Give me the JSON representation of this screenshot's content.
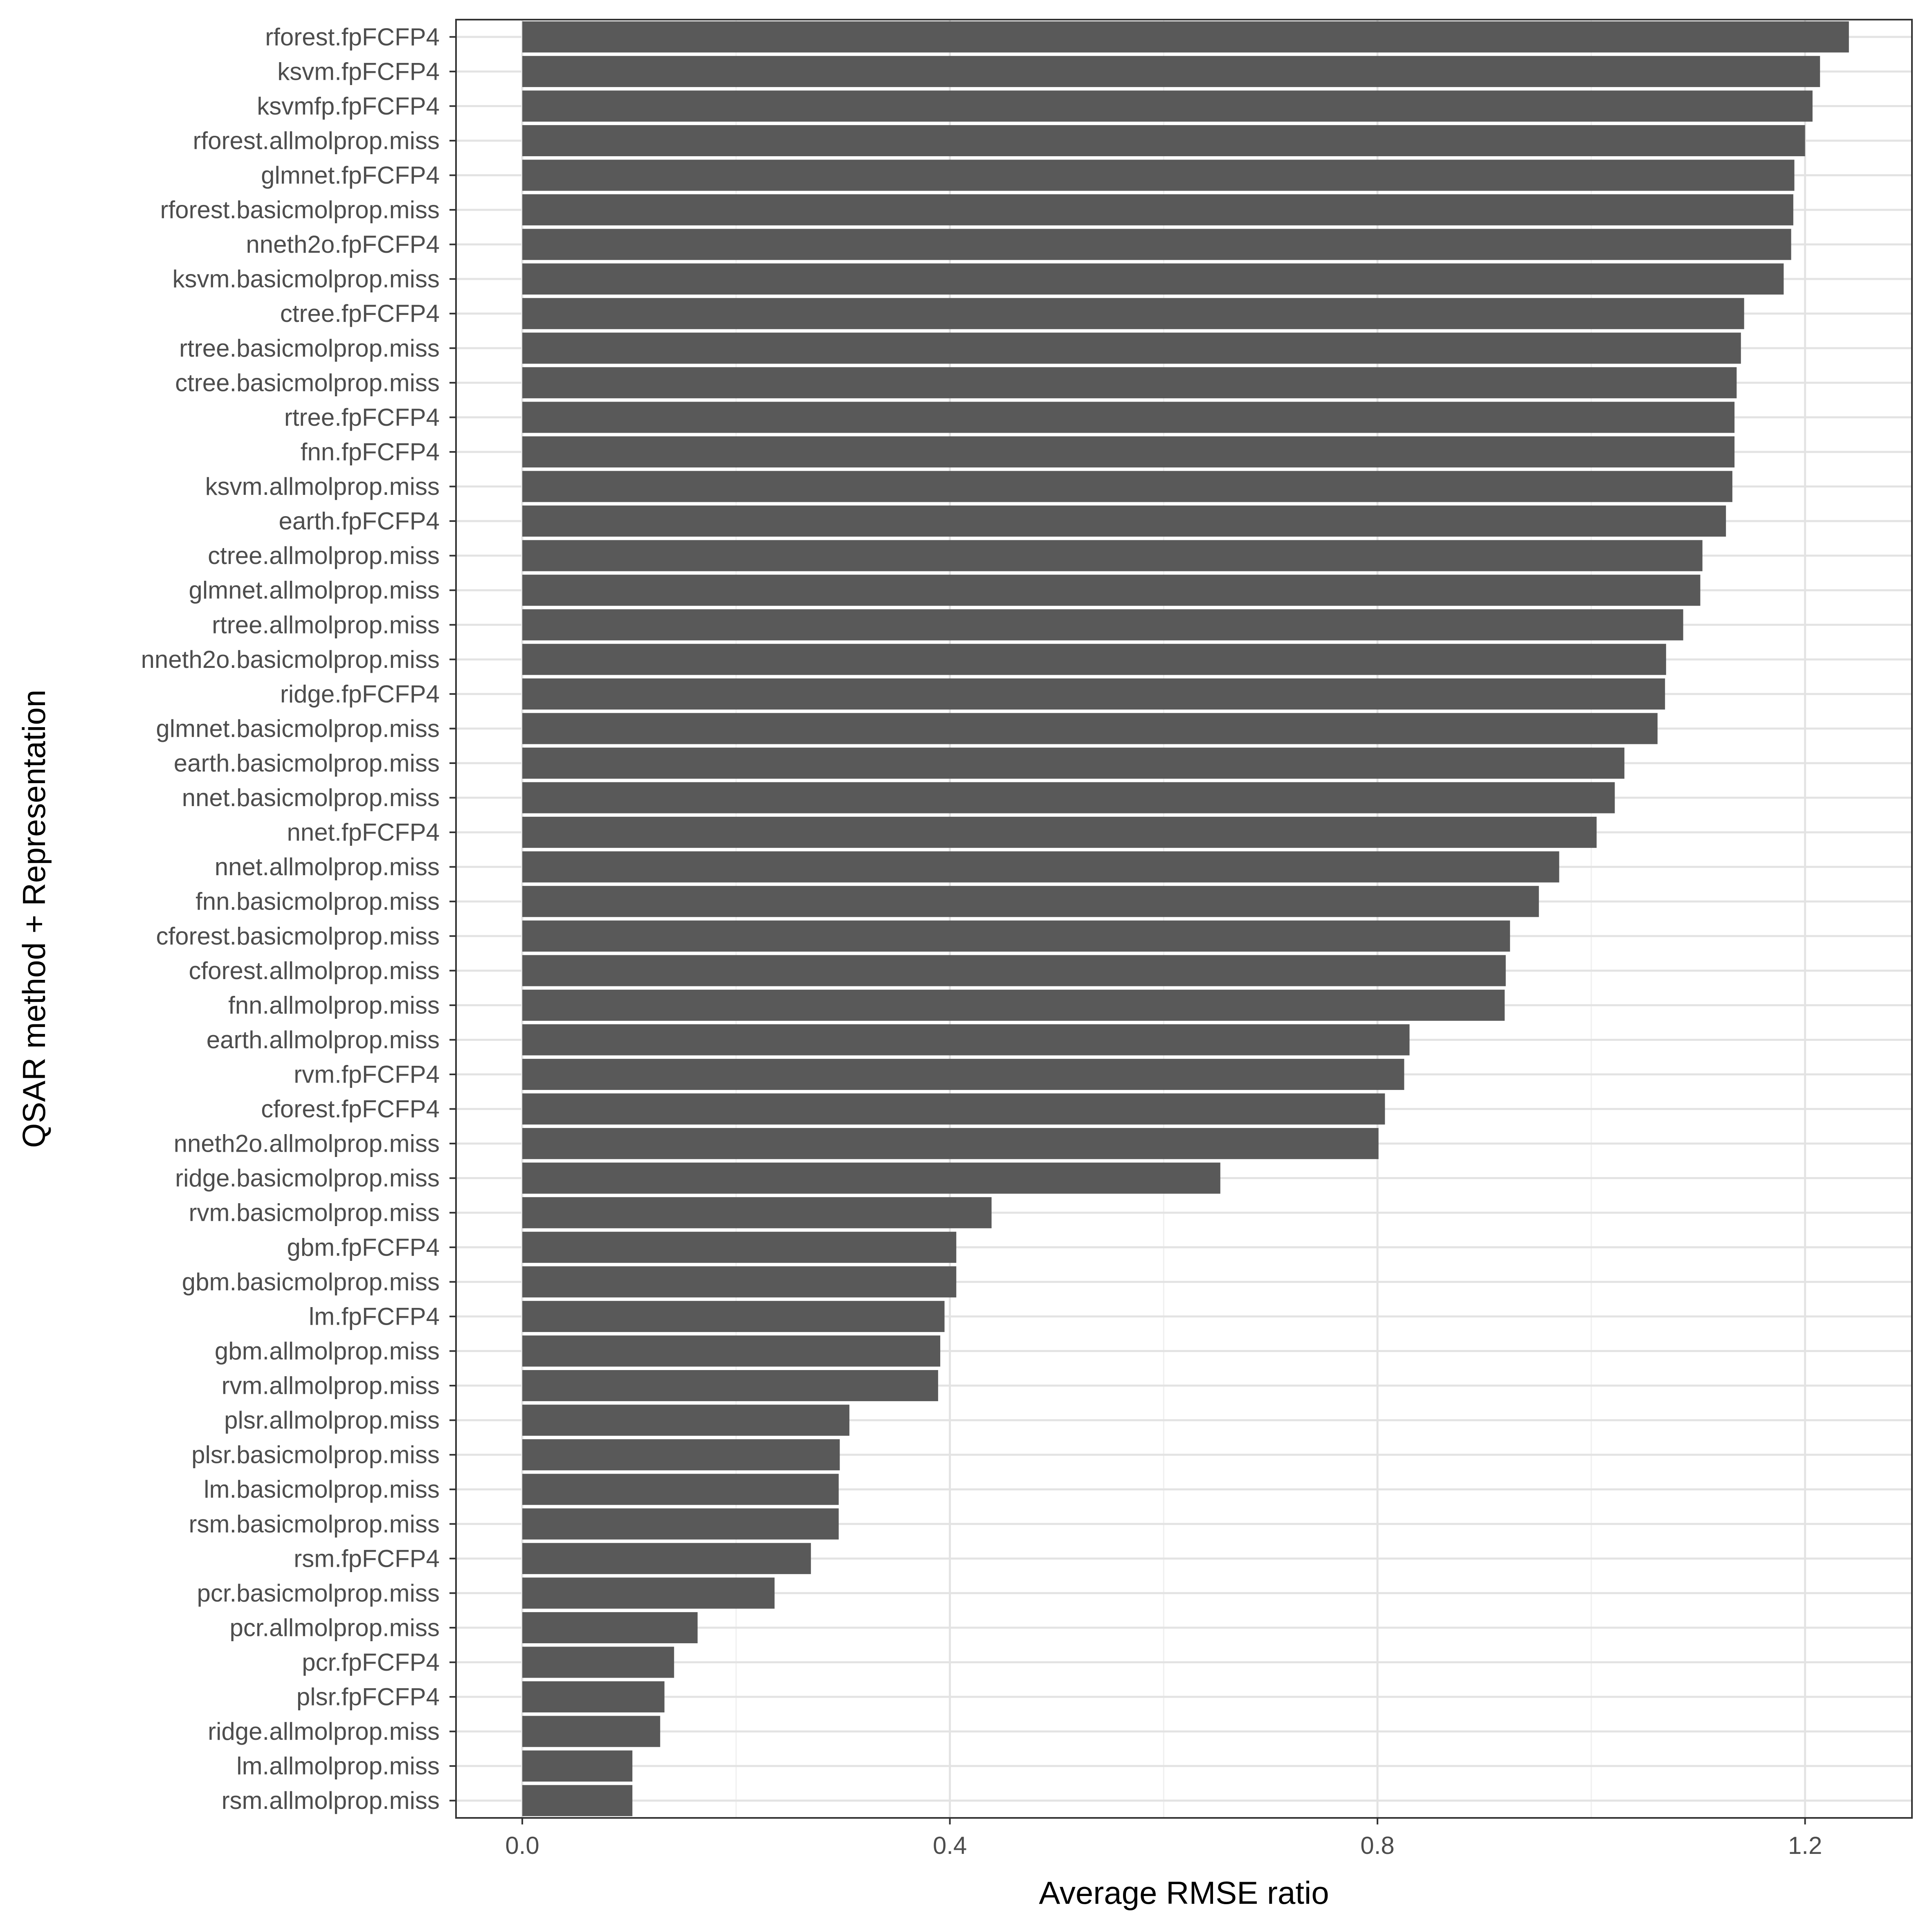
{
  "chart_data": {
    "type": "bar",
    "orientation": "horizontal",
    "xlabel": "Average RMSE ratio",
    "ylabel": "QSAR method + Representation",
    "xlim": [
      -0.062,
      1.3
    ],
    "xticks": [
      0.0,
      0.4,
      0.8,
      1.2
    ],
    "xtick_labels": [
      "0.0",
      "0.4",
      "0.8",
      "1.2"
    ],
    "grid": true,
    "legend": "none",
    "bar_color": "#595959",
    "categories": [
      "rforest.fpFCFP4",
      "ksvm.fpFCFP4",
      "ksvmfp.fpFCFP4",
      "rforest.allmolprop.miss",
      "glmnet.fpFCFP4",
      "rforest.basicmolprop.miss",
      "nneth2o.fpFCFP4",
      "ksvm.basicmolprop.miss",
      "ctree.fpFCFP4",
      "rtree.basicmolprop.miss",
      "ctree.basicmolprop.miss",
      "rtree.fpFCFP4",
      "fnn.fpFCFP4",
      "ksvm.allmolprop.miss",
      "earth.fpFCFP4",
      "ctree.allmolprop.miss",
      "glmnet.allmolprop.miss",
      "rtree.allmolprop.miss",
      "nneth2o.basicmolprop.miss",
      "ridge.fpFCFP4",
      "glmnet.basicmolprop.miss",
      "earth.basicmolprop.miss",
      "nnet.basicmolprop.miss",
      "nnet.fpFCFP4",
      "nnet.allmolprop.miss",
      "fnn.basicmolprop.miss",
      "cforest.basicmolprop.miss",
      "cforest.allmolprop.miss",
      "fnn.allmolprop.miss",
      "earth.allmolprop.miss",
      "rvm.fpFCFP4",
      "cforest.fpFCFP4",
      "nneth2o.allmolprop.miss",
      "ridge.basicmolprop.miss",
      "rvm.basicmolprop.miss",
      "gbm.fpFCFP4",
      "gbm.basicmolprop.miss",
      "lm.fpFCFP4",
      "gbm.allmolprop.miss",
      "rvm.allmolprop.miss",
      "plsr.allmolprop.miss",
      "plsr.basicmolprop.miss",
      "lm.basicmolprop.miss",
      "rsm.basicmolprop.miss",
      "rsm.fpFCFP4",
      "pcr.basicmolprop.miss",
      "pcr.allmolprop.miss",
      "pcr.fpFCFP4",
      "plsr.fpFCFP4",
      "ridge.allmolprop.miss",
      "lm.allmolprop.miss",
      "rsm.allmolprop.miss"
    ],
    "values": [
      1.241,
      1.214,
      1.207,
      1.2,
      1.19,
      1.189,
      1.187,
      1.18,
      1.143,
      1.14,
      1.136,
      1.134,
      1.134,
      1.132,
      1.126,
      1.104,
      1.102,
      1.086,
      1.07,
      1.069,
      1.062,
      1.031,
      1.022,
      1.005,
      0.97,
      0.951,
      0.924,
      0.92,
      0.919,
      0.83,
      0.825,
      0.807,
      0.801,
      0.653,
      0.439,
      0.406,
      0.406,
      0.395,
      0.391,
      0.389,
      0.306,
      0.297,
      0.296,
      0.296,
      0.27,
      0.236,
      0.164,
      0.142,
      0.133,
      0.129,
      0.103,
      0.103
    ]
  }
}
